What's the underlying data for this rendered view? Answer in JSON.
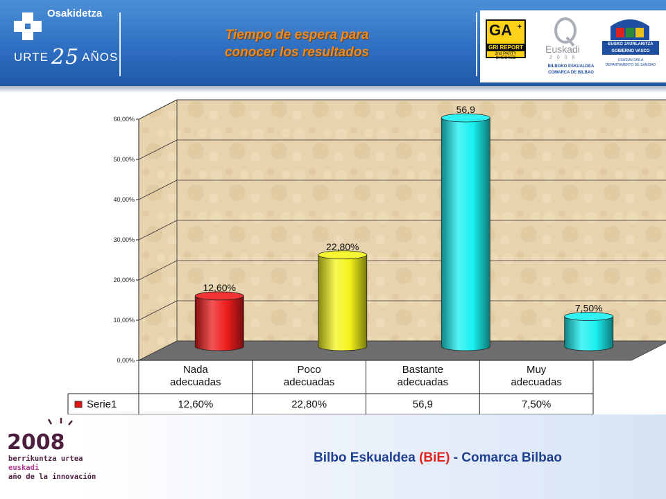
{
  "header": {
    "org_name": "Osakidetza",
    "anniv_prefix": "URTE",
    "anniv_number": "25",
    "anniv_suffix": "AÑOS",
    "title_line1": "Tiempo de espera para",
    "title_line2": "conocer los resultados",
    "badge_ga": "GA",
    "badge_plus": "+",
    "badge_report": "GRI REPORT",
    "badge_checked": "2nd PARTY CHECKED",
    "euskadi_word": "Euskadi",
    "euskadi_year": "2006",
    "comarca_line1": "BILBOKO ESKUALDEA",
    "comarca_line2": "COMARCA DE BILBAO",
    "gov_line1": "EUSKO JAURLARITZA",
    "gov_line2": "GOBIERNO VASCO",
    "gov_sub1": "OSASUN SAILA",
    "gov_sub2": "DEPARTAMENTO DE SANIDAD"
  },
  "chart_data": {
    "type": "bar",
    "style": "3d-cylinder",
    "categories": [
      [
        "Nada",
        "adecuadas"
      ],
      [
        "Poco",
        "adecuadas"
      ],
      [
        "Bastante",
        "adecuadas"
      ],
      [
        "Muy",
        "adecuadas"
      ]
    ],
    "series": [
      {
        "name": "Serie1",
        "values": [
          12.6,
          22.8,
          56.9,
          7.5
        ],
        "labels": [
          "12,60%",
          "22,80%",
          "56,9",
          "7,50%"
        ],
        "colors": [
          "#ee1c1c",
          "#f4f41a",
          "#19f0f0",
          "#19f0f0"
        ],
        "legend_color": "#e01818"
      }
    ],
    "yticks": [
      "0,00%",
      "10,00%",
      "20,00%",
      "30,00%",
      "40,00%",
      "50,00%",
      "60,00%"
    ],
    "ylim": [
      0,
      60
    ],
    "grid": true,
    "data_table": true,
    "colors": {
      "wall": "#e7d3ad",
      "floor": "#6e6e6e"
    }
  },
  "footer": {
    "credit_prefix": "Bilbo Eskualdea",
    "credit_accent": "(BiE)",
    "credit_suffix": "- Comarca Bilbao",
    "year_logo": "2008",
    "year_text1": "berrikuntza urtea",
    "year_text2": "euskadi",
    "year_text3": "año de la innovación"
  }
}
